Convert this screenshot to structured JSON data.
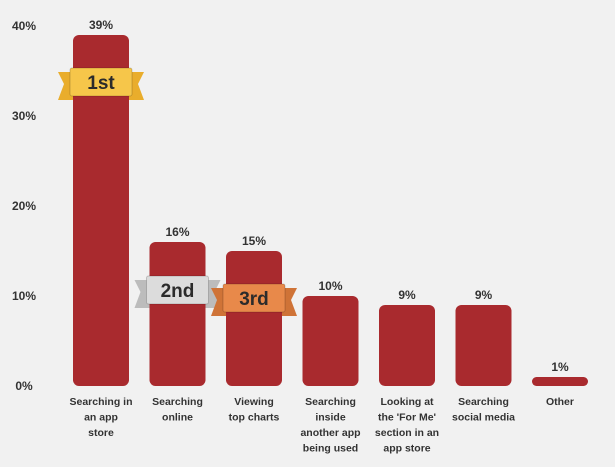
{
  "chart_data": {
    "type": "bar",
    "title": "",
    "xlabel": "",
    "ylabel": "",
    "ylim": [
      0,
      40
    ],
    "yticks": [
      0,
      10,
      20,
      30,
      40
    ],
    "ytick_labels": [
      "0%",
      "10%",
      "20%",
      "30%",
      "40%"
    ],
    "grid": false,
    "categories": [
      "Searching in an app store",
      "Searching online",
      "Viewing top charts",
      "Searching inside another app being used",
      "Looking at the 'For Me' section in an app store",
      "Searching social media",
      "Other"
    ],
    "category_lines": [
      [
        "Searching in",
        "an app",
        "store"
      ],
      [
        "Searching",
        "online"
      ],
      [
        "Viewing",
        "top charts"
      ],
      [
        "Searching",
        "inside",
        "another app",
        "being used"
      ],
      [
        "Looking at",
        "the 'For Me'",
        "section in an",
        "app store"
      ],
      [
        "Searching",
        "social media"
      ],
      [
        "Other"
      ]
    ],
    "values": [
      39,
      16,
      15,
      10,
      9,
      9,
      1
    ],
    "value_labels": [
      "39%",
      "16%",
      "15%",
      "10%",
      "9%",
      "9%",
      "1%"
    ],
    "rank_badges": [
      {
        "label": "1st",
        "category_index": 0,
        "color": "#f6c64a",
        "ribbon": "#e9ad2c"
      },
      {
        "label": "2nd",
        "category_index": 1,
        "color": "#dcdcdc",
        "ribbon": "#bcbcbc"
      },
      {
        "label": "3rd",
        "category_index": 2,
        "color": "#e8894a",
        "ribbon": "#cf7337"
      }
    ],
    "colors": {
      "bar": "#a92a2e",
      "background": "#f1f1f1",
      "text": "#333333"
    }
  }
}
